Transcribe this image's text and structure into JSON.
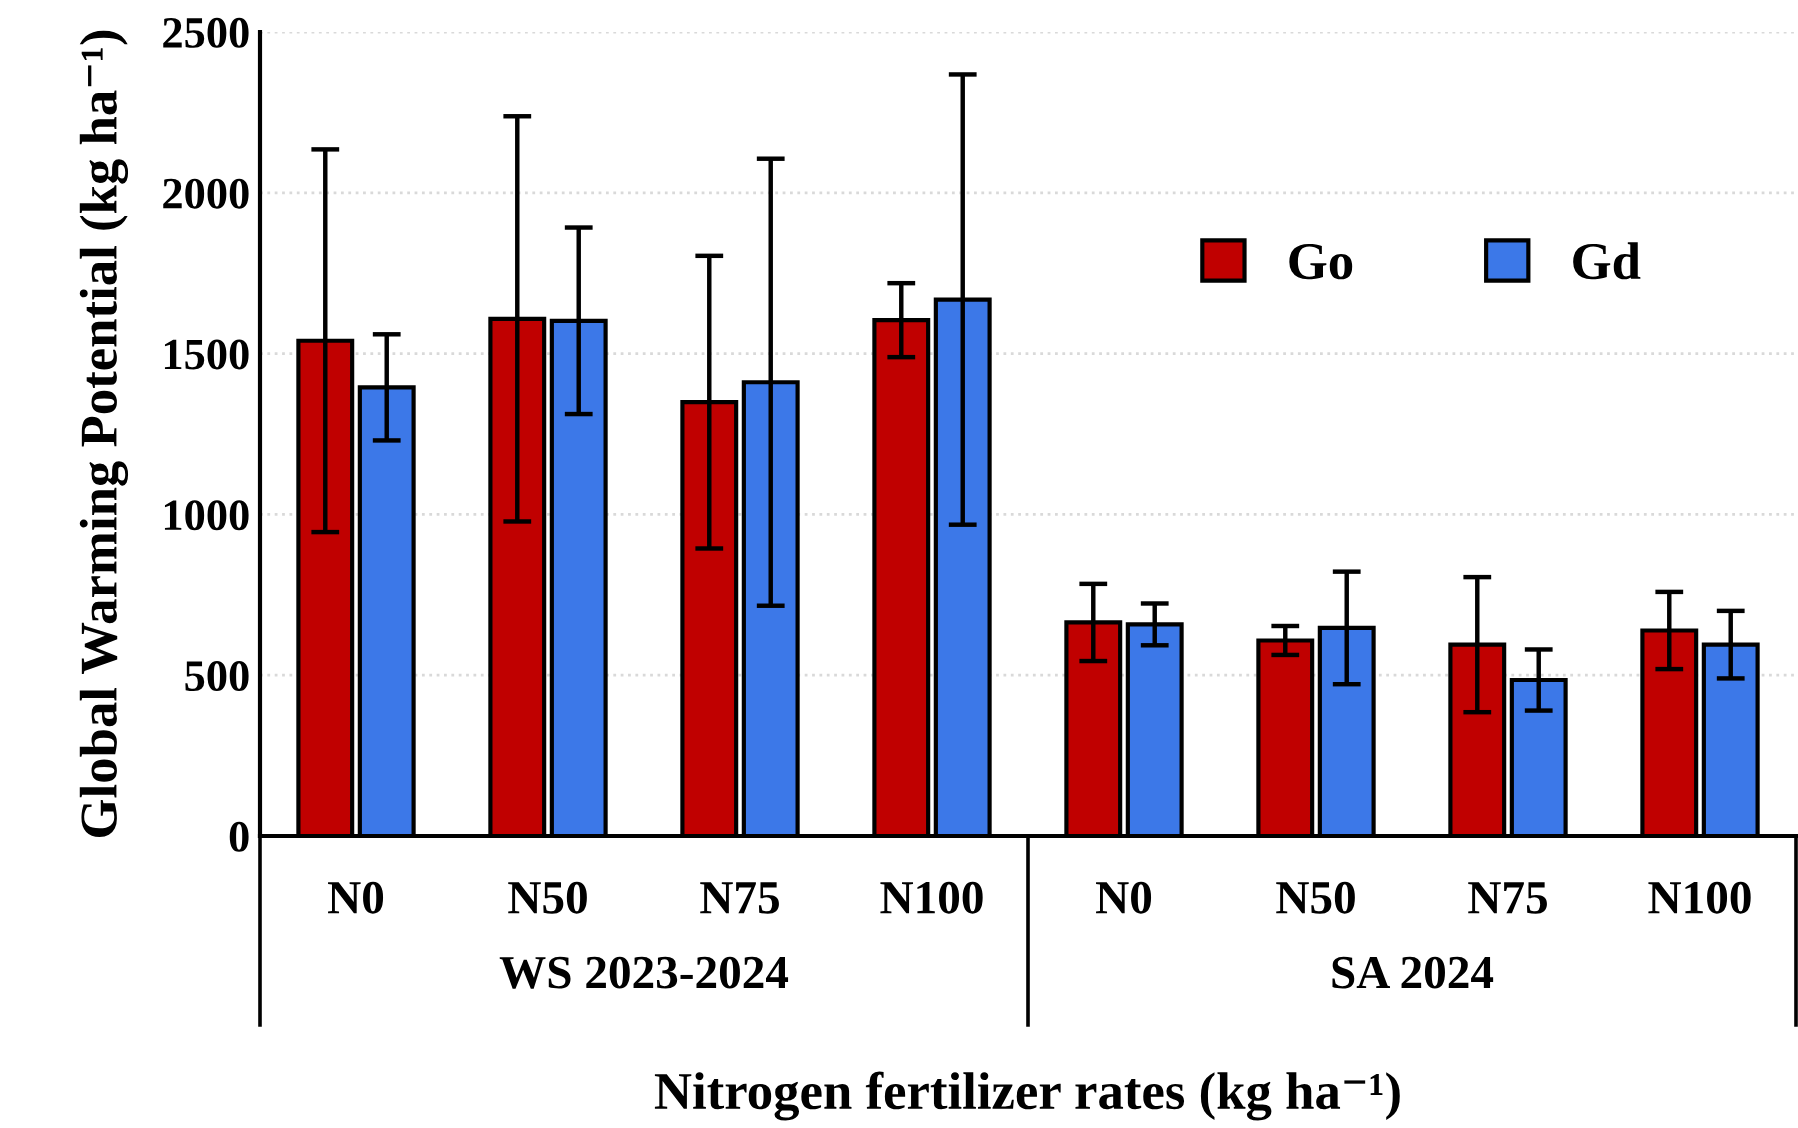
{
  "chart_data": {
    "type": "bar",
    "categories": [
      "N0",
      "N50",
      "N75",
      "N100",
      "N0",
      "N50",
      "N75",
      "N100"
    ],
    "series": [
      {
        "name": "Go",
        "color": "#c00000",
        "values": [
          1540,
          1608,
          1349,
          1604,
          664,
          608,
          595,
          639
        ],
        "errors": [
          595,
          630,
          455,
          115,
          120,
          45,
          210,
          120
        ]
      },
      {
        "name": "Gd",
        "color": "#3c78e8",
        "values": [
          1395,
          1602,
          1411,
          1668,
          658,
          647,
          485,
          595
        ],
        "errors": [
          165,
          290,
          695,
          700,
          65,
          175,
          95,
          105
        ]
      }
    ],
    "ylabel": "Global Warming Potential (kg ha⁻¹)",
    "xlabel": "Nitrogen fertilizer rates (kg ha⁻¹)",
    "annotations": [
      "WS 2023-2024",
      "SA 2024"
    ],
    "ylim": [
      0,
      2500
    ],
    "yticks": [
      0,
      500,
      1000,
      1500,
      2000,
      2500
    ],
    "grid": "y",
    "legend": "top right"
  }
}
